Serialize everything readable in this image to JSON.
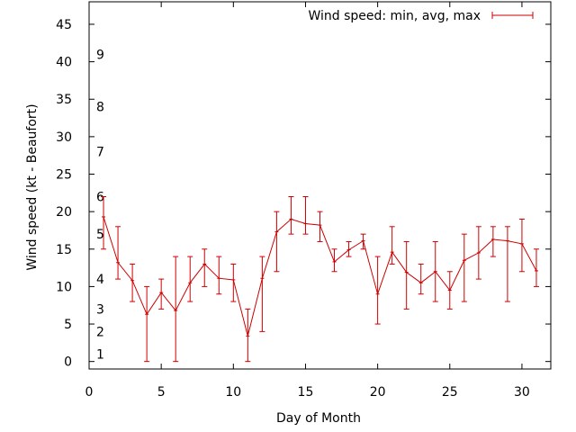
{
  "chart_data": {
    "type": "line",
    "title": "",
    "xlabel": "Day of Month",
    "ylabel": "Wind speed (kt - Beaufort)",
    "xlim": [
      0,
      32
    ],
    "ylim": [
      -1,
      48
    ],
    "x_ticks": [
      0,
      5,
      10,
      15,
      20,
      25,
      30
    ],
    "y_ticks": [
      0,
      5,
      10,
      15,
      20,
      25,
      30,
      35,
      40,
      45
    ],
    "grid": false,
    "legend_position": "top-right",
    "beaufort_labels": [
      {
        "label": "1",
        "y": 1
      },
      {
        "label": "2",
        "y": 4
      },
      {
        "label": "3",
        "y": 7
      },
      {
        "label": "4",
        "y": 11
      },
      {
        "label": "5",
        "y": 17
      },
      {
        "label": "6",
        "y": 22
      },
      {
        "label": "7",
        "y": 28
      },
      {
        "label": "8",
        "y": 34
      },
      {
        "label": "9",
        "y": 41
      }
    ],
    "series": [
      {
        "name": "Wind speed: min, avg, max",
        "color": "#cc0000",
        "x": [
          1,
          2,
          3,
          4,
          5,
          6,
          7,
          8,
          9,
          10,
          11,
          12,
          13,
          14,
          15,
          16,
          17,
          18,
          19,
          20,
          21,
          22,
          23,
          24,
          25,
          26,
          27,
          28,
          29,
          30,
          31
        ],
        "avg": [
          19.3,
          13.2,
          10.8,
          6.3,
          9.2,
          6.8,
          10.5,
          13.0,
          11.1,
          10.9,
          3.4,
          11.1,
          17.3,
          19.0,
          18.4,
          18.2,
          13.3,
          14.9,
          16.1,
          9.0,
          14.6,
          11.9,
          10.5,
          12.0,
          9.5,
          13.5,
          14.5,
          16.3,
          16.1,
          15.7,
          12.1
        ],
        "min": [
          15,
          11,
          8,
          0,
          7,
          0,
          8,
          10,
          9,
          8,
          0,
          4,
          12,
          17,
          17,
          16,
          12,
          14,
          15,
          5,
          13,
          7,
          9,
          8,
          7,
          8,
          11,
          14,
          8,
          12,
          10
        ],
        "max": [
          22,
          18,
          13,
          10,
          11,
          14,
          14,
          15,
          14,
          13,
          7,
          14,
          20,
          22,
          22,
          20,
          15,
          16,
          17,
          14,
          18,
          16,
          13,
          16,
          12,
          17,
          18,
          18,
          18,
          19,
          15
        ]
      }
    ]
  }
}
